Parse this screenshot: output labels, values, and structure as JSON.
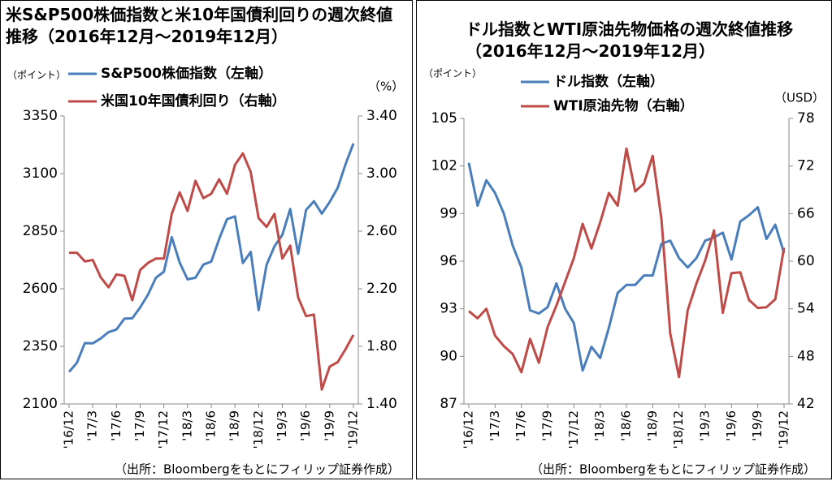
{
  "chart_data": [
    {
      "type": "line",
      "title": "米S&P500株価指数と米10年国債利回りの週次終値推移（2016年12月～2019年12月）",
      "y_label": "（ポイント）",
      "y2_label": "（%）",
      "source": "（出所：Bloombergをもとにフィリップ証券作成）",
      "categories": [
        "'16/12",
        null,
        null,
        "'17/3",
        null,
        null,
        "'17/6",
        null,
        null,
        "'17/9",
        null,
        null,
        "'17/12",
        null,
        null,
        "'18/3",
        null,
        null,
        "'18/6",
        null,
        null,
        "'18/9",
        null,
        null,
        "'18/12",
        null,
        null,
        "'19/3",
        null,
        null,
        "'19/6",
        null,
        null,
        "'19/9",
        null,
        null,
        "'19/12"
      ],
      "series": [
        {
          "name": "S&P500株価指数（左軸）",
          "color": "#4a7ebb",
          "values": [
            2239,
            2279,
            2364,
            2363,
            2384,
            2412,
            2423,
            2470,
            2472,
            2519,
            2575,
            2648,
            2674,
            2824,
            2714,
            2641,
            2648,
            2705,
            2718,
            2816,
            2902,
            2914,
            2712,
            2760,
            2507,
            2704,
            2784,
            2834,
            2946,
            2752,
            2942,
            2980,
            2926,
            2977,
            3038,
            3141,
            3231
          ]
        },
        {
          "name": "米国10年国債利回り（右軸）",
          "color": "#be4b48",
          "axis": "y2",
          "values": [
            2.45,
            2.45,
            2.39,
            2.4,
            2.28,
            2.21,
            2.3,
            2.29,
            2.12,
            2.33,
            2.38,
            2.41,
            2.41,
            2.72,
            2.87,
            2.74,
            2.95,
            2.83,
            2.86,
            2.96,
            2.86,
            3.06,
            3.14,
            3.01,
            2.69,
            2.63,
            2.72,
            2.41,
            2.5,
            2.14,
            2.01,
            2.02,
            1.5,
            1.66,
            1.69,
            1.78,
            1.88
          ]
        }
      ],
      "ylim": [
        2100,
        3350
      ],
      "yticks": [
        2100,
        2350,
        2600,
        2850,
        3100,
        3350
      ],
      "y2lim": [
        1.4,
        3.4
      ],
      "y2ticks": [
        {
          "value": 1.4,
          "label": "1.40"
        },
        {
          "value": 1.8,
          "label": "1.80"
        },
        {
          "value": 2.2,
          "label": "2.20"
        },
        {
          "value": 2.6,
          "label": "2.60"
        },
        {
          "value": 3,
          "label": "3.00"
        },
        {
          "value": 3.4,
          "label": "3.40"
        }
      ]
    },
    {
      "type": "line",
      "title": "ドル指数とWTI原油先物価格の週次終値推移（2016年12月～2019年12月）",
      "y_label": "（ポイント）",
      "y2_label": "（USD）",
      "source": "（出所：Bloombergをもとにフィリップ証券作成）",
      "categories": [
        "'16/12",
        null,
        null,
        "'17/3",
        null,
        null,
        "'17/6",
        null,
        null,
        "'17/9",
        null,
        null,
        "'17/12",
        null,
        null,
        "'18/3",
        null,
        null,
        "'18/6",
        null,
        null,
        "'18/9",
        null,
        null,
        "'18/12",
        null,
        null,
        "'19/3",
        null,
        null,
        "'19/6",
        null,
        null,
        "'19/9",
        null,
        null,
        "'19/12"
      ],
      "series": [
        {
          "name": "ドル指数（左軸）",
          "color": "#4a7ebb",
          "values": [
            102.2,
            99.5,
            101.1,
            100.3,
            99,
            97,
            95.6,
            92.9,
            92.7,
            93.1,
            94.6,
            93,
            92.1,
            89.1,
            90.6,
            89.9,
            91.8,
            94,
            94.5,
            94.5,
            95.1,
            95.1,
            97.1,
            97.3,
            96.2,
            95.6,
            96.2,
            97.3,
            97.5,
            97.8,
            96.1,
            98.5,
            98.9,
            99.4,
            97.4,
            98.3,
            96.5
          ]
        },
        {
          "name": "WTI原油先物（右軸）",
          "color": "#be4b48",
          "axis": "y2",
          "values": [
            53.7,
            52.8,
            54,
            50.6,
            49.3,
            48.3,
            46,
            50.2,
            47.2,
            51.7,
            54.4,
            57.4,
            60.4,
            64.7,
            61.6,
            64.9,
            68.6,
            67,
            74.2,
            68.8,
            69.8,
            73.3,
            65.3,
            50.9,
            45.4,
            53.8,
            57.2,
            60.1,
            63.9,
            53.5,
            58.5,
            58.6,
            55.1,
            54.1,
            54.2,
            55.2,
            61.7
          ]
        }
      ],
      "ylim": [
        87,
        105
      ],
      "yticks": [
        87,
        90,
        93,
        96,
        99,
        102,
        105
      ],
      "y2lim": [
        42,
        78
      ],
      "y2ticks": [
        42,
        48,
        54,
        60,
        66,
        72,
        78
      ]
    }
  ]
}
